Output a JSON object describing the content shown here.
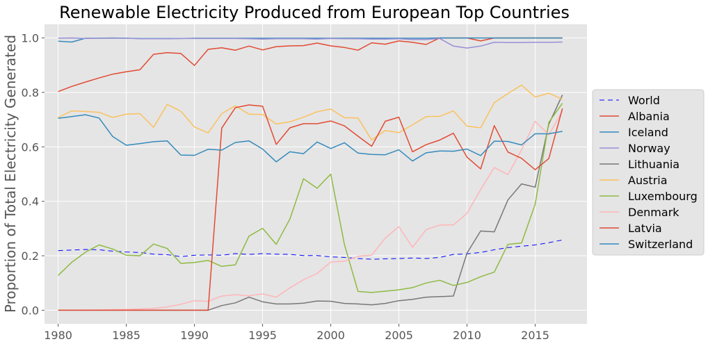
{
  "chart_data": {
    "type": "line",
    "title": "Renewable Electricity Produced from European Top Countries",
    "xlabel": "",
    "ylabel": "Proportion of Total Electricity Generated",
    "xlim": [
      1979,
      2018.8
    ],
    "ylim": [
      -0.05,
      1.05
    ],
    "x_ticks": [
      1980,
      1985,
      1990,
      1995,
      2000,
      2005,
      2010,
      2015
    ],
    "y_ticks": [
      0.0,
      0.2,
      0.4,
      0.6,
      0.8,
      1.0
    ],
    "y_tick_labels": [
      "0.0",
      "0.2",
      "0.4",
      "0.6",
      "0.8",
      "1.0"
    ],
    "grid": true,
    "legend_position": "center-right",
    "x": [
      1980,
      1981,
      1982,
      1983,
      1984,
      1985,
      1986,
      1987,
      1988,
      1989,
      1990,
      1991,
      1992,
      1993,
      1994,
      1995,
      1996,
      1997,
      1998,
      1999,
      2000,
      2001,
      2002,
      2003,
      2004,
      2005,
      2006,
      2007,
      2008,
      2009,
      2010,
      2011,
      2012,
      2013,
      2014,
      2015,
      2016,
      2017
    ],
    "series": [
      {
        "name": "World",
        "color": "#0000ff",
        "dashed": true,
        "values": [
          0.219,
          0.221,
          0.223,
          0.222,
          0.217,
          0.214,
          0.212,
          0.206,
          0.204,
          0.197,
          0.202,
          0.203,
          0.202,
          0.208,
          0.205,
          0.208,
          0.206,
          0.205,
          0.201,
          0.201,
          0.196,
          0.194,
          0.19,
          0.187,
          0.189,
          0.19,
          0.192,
          0.19,
          0.194,
          0.205,
          0.207,
          0.212,
          0.222,
          0.23,
          0.235,
          0.24,
          0.248,
          0.258
        ]
      },
      {
        "name": "Albania",
        "color": "#e24a33",
        "dashed": false,
        "values": [
          0.803,
          0.822,
          0.838,
          0.853,
          0.867,
          0.876,
          0.883,
          0.94,
          0.946,
          0.943,
          0.899,
          0.958,
          0.964,
          0.955,
          0.97,
          0.956,
          0.968,
          0.971,
          0.972,
          0.981,
          0.971,
          0.965,
          0.955,
          0.982,
          0.977,
          0.989,
          0.984,
          0.976,
          1.0,
          1.0,
          1.0,
          0.989,
          1.0,
          1.0,
          1.0,
          1.0,
          1.0,
          1.0
        ]
      },
      {
        "name": "Iceland",
        "color": "#348abd",
        "dashed": false,
        "values": [
          0.988,
          0.985,
          0.999,
          0.999,
          1.0,
          0.999,
          0.998,
          0.998,
          0.998,
          0.998,
          0.999,
          0.999,
          0.999,
          0.999,
          0.999,
          0.999,
          0.999,
          0.999,
          0.999,
          0.999,
          0.999,
          0.999,
          0.999,
          0.999,
          0.999,
          0.999,
          0.999,
          0.999,
          1.0,
          1.0,
          1.0,
          1.0,
          1.0,
          1.0,
          1.0,
          1.0,
          1.0,
          1.0
        ]
      },
      {
        "name": "Norway",
        "color": "#988ed5",
        "dashed": false,
        "values": [
          0.999,
          1.0,
          0.998,
          0.999,
          0.999,
          0.999,
          0.997,
          0.997,
          0.997,
          0.998,
          0.998,
          0.998,
          0.998,
          0.998,
          0.997,
          0.996,
          0.997,
          0.997,
          0.997,
          0.996,
          0.998,
          0.997,
          0.997,
          0.996,
          0.996,
          0.997,
          0.994,
          0.994,
          0.998,
          0.97,
          0.963,
          0.97,
          0.984,
          0.983,
          0.983,
          0.984,
          0.984,
          0.985
        ]
      },
      {
        "name": "Lithuania",
        "color": "#777777",
        "dashed": false,
        "values": [
          0.0,
          0.0,
          0.0,
          0.0,
          0.0,
          0.0,
          0.0,
          0.0,
          0.0,
          0.0,
          0.0,
          0.0,
          0.017,
          0.027,
          0.048,
          0.031,
          0.023,
          0.023,
          0.026,
          0.034,
          0.033,
          0.025,
          0.023,
          0.02,
          0.025,
          0.035,
          0.04,
          0.048,
          0.05,
          0.052,
          0.21,
          0.291,
          0.288,
          0.405,
          0.464,
          0.452,
          0.683,
          0.791
        ]
      },
      {
        "name": "Austria",
        "color": "#fbc15e",
        "dashed": false,
        "values": [
          0.708,
          0.732,
          0.73,
          0.727,
          0.708,
          0.72,
          0.722,
          0.672,
          0.756,
          0.731,
          0.673,
          0.651,
          0.722,
          0.751,
          0.72,
          0.719,
          0.684,
          0.692,
          0.709,
          0.729,
          0.739,
          0.707,
          0.706,
          0.625,
          0.66,
          0.652,
          0.681,
          0.711,
          0.712,
          0.732,
          0.676,
          0.67,
          0.762,
          0.796,
          0.827,
          0.783,
          0.797,
          0.775
        ]
      },
      {
        "name": "Luxembourg",
        "color": "#8eba42",
        "dashed": false,
        "values": [
          0.128,
          0.176,
          0.213,
          0.24,
          0.225,
          0.202,
          0.2,
          0.243,
          0.227,
          0.172,
          0.175,
          0.183,
          0.161,
          0.167,
          0.272,
          0.301,
          0.242,
          0.335,
          0.483,
          0.448,
          0.5,
          0.242,
          0.069,
          0.065,
          0.07,
          0.075,
          0.083,
          0.1,
          0.11,
          0.091,
          0.102,
          0.123,
          0.14,
          0.242,
          0.247,
          0.389,
          0.69,
          0.76
        ]
      },
      {
        "name": "Denmark",
        "color": "#ffb5b8",
        "dashed": false,
        "values": [
          0.0,
          0.0,
          0.001,
          0.001,
          0.002,
          0.003,
          0.005,
          0.007,
          0.012,
          0.022,
          0.035,
          0.033,
          0.052,
          0.057,
          0.053,
          0.06,
          0.048,
          0.082,
          0.112,
          0.135,
          0.177,
          0.18,
          0.198,
          0.202,
          0.265,
          0.307,
          0.231,
          0.296,
          0.313,
          0.313,
          0.356,
          0.443,
          0.524,
          0.498,
          0.589,
          0.694,
          0.644,
          0.732
        ]
      },
      {
        "name": "Latvia",
        "color": "#e24a33",
        "dashed": false,
        "values": [
          0.0,
          0.0,
          0.0,
          0.0,
          0.0,
          0.0,
          0.0,
          0.0,
          0.0,
          0.0,
          0.0,
          0.0,
          0.669,
          0.744,
          0.754,
          0.749,
          0.609,
          0.67,
          0.685,
          0.685,
          0.695,
          0.677,
          0.639,
          0.602,
          0.694,
          0.709,
          0.582,
          0.608,
          0.625,
          0.65,
          0.562,
          0.519,
          0.678,
          0.581,
          0.558,
          0.516,
          0.557,
          0.741
        ]
      },
      {
        "name": "Switzerland",
        "color": "#348abd",
        "dashed": false,
        "values": [
          0.705,
          0.711,
          0.718,
          0.706,
          0.638,
          0.606,
          0.612,
          0.619,
          0.622,
          0.57,
          0.569,
          0.591,
          0.588,
          0.616,
          0.622,
          0.592,
          0.545,
          0.582,
          0.575,
          0.618,
          0.594,
          0.615,
          0.577,
          0.572,
          0.571,
          0.589,
          0.548,
          0.578,
          0.585,
          0.584,
          0.592,
          0.568,
          0.621,
          0.62,
          0.607,
          0.648,
          0.648,
          0.657
        ]
      }
    ]
  }
}
